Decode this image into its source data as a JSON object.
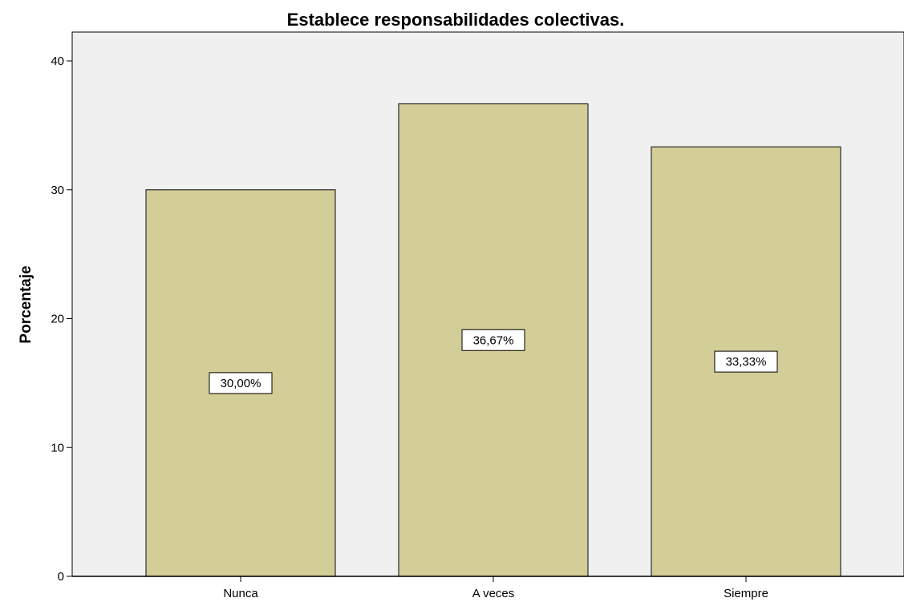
{
  "chart_data": {
    "type": "bar",
    "title": "Establece responsabilidades colectivas.",
    "ylabel": "Porcentaje",
    "xlabel": "",
    "categories": [
      "Nunca",
      "A veces",
      "Siempre"
    ],
    "values": [
      30.0,
      36.67,
      33.33
    ],
    "data_labels": [
      "30,00%",
      "36,67%",
      "33,33%"
    ],
    "ylim": [
      0,
      40
    ],
    "yticks": [
      0,
      10,
      20,
      30,
      40
    ],
    "grid": false,
    "legend": "none",
    "colors": {
      "plot_background": "#f0f0f0",
      "bar_fill": "#d3ce97",
      "bar_stroke": "#2b2b2b",
      "axis": "#000000"
    }
  }
}
